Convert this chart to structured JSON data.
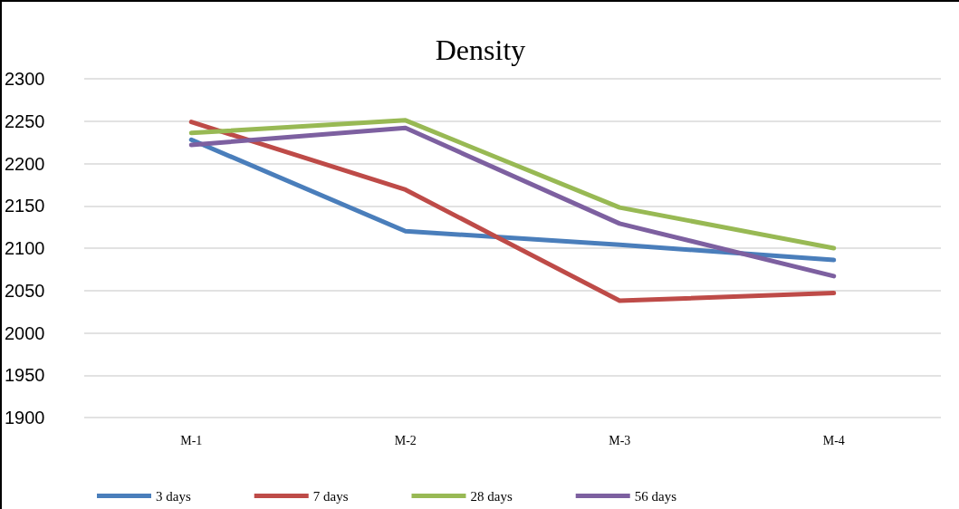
{
  "chart_data": {
    "type": "line",
    "title": "Density",
    "categories": [
      "M-1",
      "M-2",
      "M-3",
      "M-4"
    ],
    "series": [
      {
        "name": "3 days",
        "color": "#4a7ebb",
        "values": [
          2228,
          2120,
          2104,
          2086
        ]
      },
      {
        "name": "7 days",
        "color": "#be4b48",
        "values": [
          2249,
          2169,
          2038,
          2047
        ]
      },
      {
        "name": "28 days",
        "color": "#98b954",
        "values": [
          2236,
          2251,
          2148,
          2100
        ]
      },
      {
        "name": "56 days",
        "color": "#7d60a0",
        "values": [
          2222,
          2242,
          2129,
          2067
        ]
      }
    ],
    "ylim": [
      1900,
      2300
    ],
    "yticks": [
      1900,
      1950,
      2000,
      2050,
      2100,
      2150,
      2200,
      2250,
      2300
    ],
    "grid": "y",
    "legend": "bottom",
    "marker": "none",
    "line_style": "solid"
  }
}
